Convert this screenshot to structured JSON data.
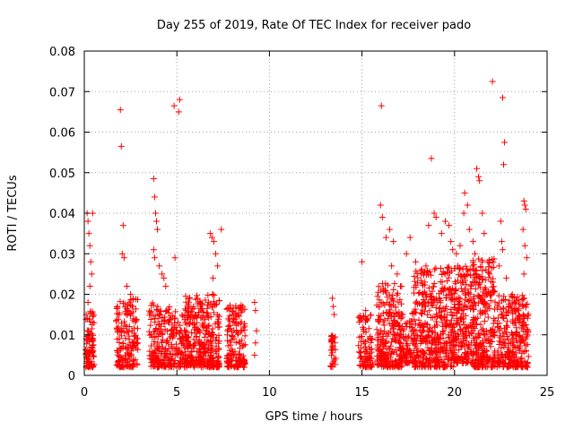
{
  "chart_data": {
    "type": "scatter",
    "title": "Day 255 of 2019, Rate Of TEC Index for receiver pado",
    "xlabel": "GPS time / hours",
    "ylabel": "ROTI / TECUs",
    "xlim": [
      0,
      25
    ],
    "ylim": [
      0,
      0.08
    ],
    "xticks": [
      0,
      5,
      10,
      15,
      20,
      25
    ],
    "xtick_labels": [
      "0",
      "5",
      "10",
      "15",
      "20",
      "25"
    ],
    "yticks": [
      0,
      0.01,
      0.02,
      0.03,
      0.04,
      0.05,
      0.06,
      0.07,
      0.08
    ],
    "ytick_labels": [
      "0",
      "0.01",
      "0.02",
      "0.03",
      "0.04",
      "0.05",
      "0.06",
      "0.07",
      "0.08"
    ],
    "grid": true,
    "marker": "+",
    "marker_color": "#ff0000",
    "series": [
      {
        "name": "ROTI",
        "points": [
          [
            0.15,
            0.04
          ],
          [
            0.2,
            0.038
          ],
          [
            0.25,
            0.035
          ],
          [
            0.3,
            0.032
          ],
          [
            0.35,
            0.028
          ],
          [
            0.4,
            0.025
          ],
          [
            0.45,
            0.04
          ],
          [
            0.3,
            0.022
          ],
          [
            0.2,
            0.018
          ],
          [
            0.1,
            0.015
          ],
          [
            1.95,
            0.0655
          ],
          [
            2.0,
            0.0565
          ],
          [
            2.1,
            0.037
          ],
          [
            2.05,
            0.03
          ],
          [
            2.15,
            0.029
          ],
          [
            2.3,
            0.022
          ],
          [
            2.5,
            0.02
          ],
          [
            3.75,
            0.0485
          ],
          [
            3.8,
            0.044
          ],
          [
            3.85,
            0.04
          ],
          [
            3.9,
            0.038
          ],
          [
            3.95,
            0.036
          ],
          [
            3.75,
            0.031
          ],
          [
            3.8,
            0.029
          ],
          [
            4.05,
            0.027
          ],
          [
            4.2,
            0.025
          ],
          [
            4.3,
            0.024
          ],
          [
            4.4,
            0.022
          ],
          [
            4.85,
            0.0665
          ],
          [
            5.15,
            0.068
          ],
          [
            5.1,
            0.065
          ],
          [
            4.9,
            0.029
          ],
          [
            6.8,
            0.035
          ],
          [
            6.9,
            0.034
          ],
          [
            7.0,
            0.033
          ],
          [
            7.1,
            0.03
          ],
          [
            7.2,
            0.027
          ],
          [
            6.95,
            0.024
          ],
          [
            7.4,
            0.036
          ],
          [
            9.2,
            0.018
          ],
          [
            9.25,
            0.016
          ],
          [
            9.3,
            0.011
          ],
          [
            9.25,
            0.008
          ],
          [
            9.2,
            0.005
          ],
          [
            13.4,
            0.019
          ],
          [
            13.45,
            0.017
          ],
          [
            13.5,
            0.015
          ],
          [
            15.0,
            0.028
          ],
          [
            15.2,
            0.016
          ],
          [
            16.0,
            0.042
          ],
          [
            16.05,
            0.0665
          ],
          [
            16.1,
            0.039
          ],
          [
            16.3,
            0.034
          ],
          [
            16.5,
            0.036
          ],
          [
            16.7,
            0.033
          ],
          [
            16.6,
            0.027
          ],
          [
            16.9,
            0.025
          ],
          [
            17.4,
            0.03
          ],
          [
            17.6,
            0.034
          ],
          [
            17.9,
            0.028
          ],
          [
            18.2,
            0.025
          ],
          [
            18.4,
            0.023
          ],
          [
            18.6,
            0.037
          ],
          [
            18.75,
            0.0535
          ],
          [
            18.9,
            0.04
          ],
          [
            19.0,
            0.039
          ],
          [
            19.3,
            0.035
          ],
          [
            19.5,
            0.038
          ],
          [
            19.7,
            0.037
          ],
          [
            19.8,
            0.033
          ],
          [
            19.9,
            0.031
          ],
          [
            20.1,
            0.03
          ],
          [
            20.3,
            0.032
          ],
          [
            20.5,
            0.04
          ],
          [
            20.55,
            0.045
          ],
          [
            20.7,
            0.042
          ],
          [
            20.8,
            0.036
          ],
          [
            21.0,
            0.033
          ],
          [
            21.1,
            0.03
          ],
          [
            21.2,
            0.051
          ],
          [
            21.3,
            0.049
          ],
          [
            21.35,
            0.048
          ],
          [
            21.5,
            0.04
          ],
          [
            21.6,
            0.035
          ],
          [
            21.8,
            0.028
          ],
          [
            21.9,
            0.025
          ],
          [
            22.05,
            0.0725
          ],
          [
            22.6,
            0.0685
          ],
          [
            22.7,
            0.0575
          ],
          [
            22.65,
            0.052
          ],
          [
            22.5,
            0.038
          ],
          [
            22.55,
            0.033
          ],
          [
            22.6,
            0.031
          ],
          [
            22.4,
            0.027
          ],
          [
            22.8,
            0.024
          ],
          [
            23.75,
            0.043
          ],
          [
            23.8,
            0.042
          ],
          [
            23.85,
            0.041
          ],
          [
            23.7,
            0.036
          ],
          [
            23.8,
            0.032
          ],
          [
            23.9,
            0.029
          ],
          [
            23.75,
            0.025
          ]
        ],
        "dense_clusters": [
          {
            "x": [
              0.05,
              0.55
            ],
            "y": [
              0.002,
              0.016
            ],
            "count": 90
          },
          {
            "x": [
              1.7,
              2.9
            ],
            "y": [
              0.002,
              0.019
            ],
            "count": 170
          },
          {
            "x": [
              3.5,
              4.6
            ],
            "y": [
              0.002,
              0.018
            ],
            "count": 160
          },
          {
            "x": [
              4.6,
              5.6
            ],
            "y": [
              0.002,
              0.016
            ],
            "count": 110
          },
          {
            "x": [
              5.4,
              7.3
            ],
            "y": [
              0.002,
              0.02
            ],
            "count": 330
          },
          {
            "x": [
              7.7,
              8.7
            ],
            "y": [
              0.002,
              0.018
            ],
            "count": 160
          },
          {
            "x": [
              13.3,
              13.6
            ],
            "y": [
              0.002,
              0.01
            ],
            "count": 30
          },
          {
            "x": [
              14.8,
              15.6
            ],
            "y": [
              0.002,
              0.015
            ],
            "count": 90
          },
          {
            "x": [
              15.8,
              17.2
            ],
            "y": [
              0.002,
              0.023
            ],
            "count": 250
          },
          {
            "x": [
              17.0,
              17.9
            ],
            "y": [
              0.003,
              0.016
            ],
            "count": 100
          },
          {
            "x": [
              17.8,
              20.0
            ],
            "y": [
              0.002,
              0.027
            ],
            "count": 430
          },
          {
            "x": [
              20.0,
              21.0
            ],
            "y": [
              0.003,
              0.027
            ],
            "count": 200
          },
          {
            "x": [
              21.0,
              22.2
            ],
            "y": [
              0.002,
              0.029
            ],
            "count": 260
          },
          {
            "x": [
              22.3,
              24.0
            ],
            "y": [
              0.002,
              0.02
            ],
            "count": 280
          }
        ]
      }
    ]
  }
}
